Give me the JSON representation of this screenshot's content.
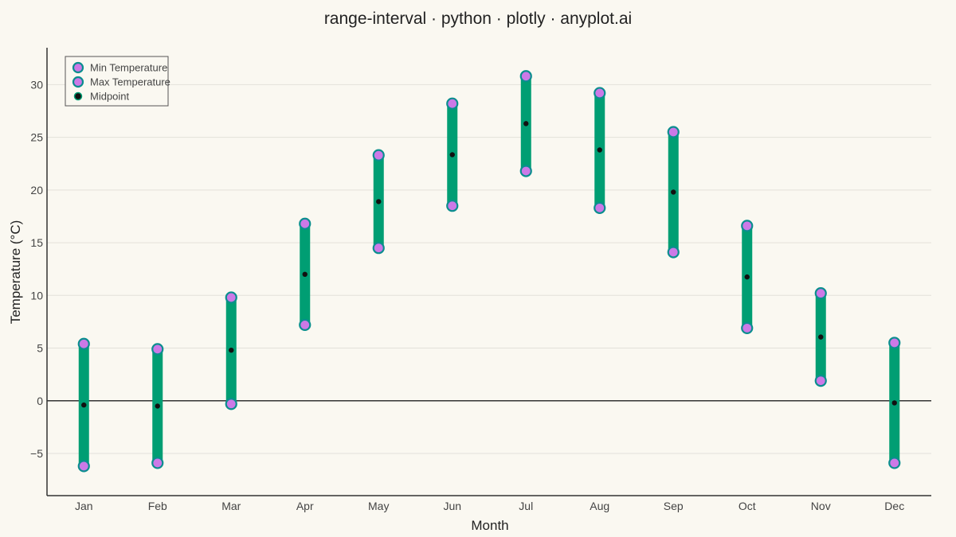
{
  "chart_data": {
    "type": "range-interval",
    "title": "range-interval · python · plotly · anyplot.ai",
    "xlabel": "Month",
    "ylabel": "Temperature (°C)",
    "categories": [
      "Jan",
      "Feb",
      "Mar",
      "Apr",
      "May",
      "Jun",
      "Jul",
      "Aug",
      "Sep",
      "Oct",
      "Nov",
      "Dec"
    ],
    "series": [
      {
        "name": "Min Temperature",
        "values": [
          -6.2,
          -5.9,
          -0.3,
          7.2,
          14.5,
          18.5,
          21.8,
          18.3,
          14.1,
          6.9,
          1.9,
          -5.9
        ]
      },
      {
        "name": "Max Temperature",
        "values": [
          5.4,
          4.9,
          9.8,
          16.8,
          23.3,
          28.2,
          30.8,
          29.2,
          25.5,
          16.6,
          10.2,
          5.5
        ]
      },
      {
        "name": "Midpoint",
        "values": [
          -0.4,
          -0.5,
          4.8,
          12.0,
          18.9,
          23.35,
          26.3,
          23.8,
          19.8,
          11.75,
          6.05,
          -0.2
        ]
      }
    ],
    "ylim": [
      -9,
      33.5
    ],
    "yticks": [
      -5,
      0,
      5,
      10,
      15,
      20,
      25,
      30
    ],
    "ytick_labels": [
      "−5",
      "0",
      "5",
      "10",
      "15",
      "20",
      "25",
      "30"
    ],
    "grid": true,
    "zero_line": true,
    "legend_position": "top-left",
    "colors": {
      "background": "#FAF8F1",
      "range_bar": "#009E73",
      "endpoint_fill": "#CC79E7",
      "endpoint_outline": "#0A8E8E",
      "midpoint": "#111111",
      "grid": "#E3E1DA",
      "axis": "#333333"
    }
  }
}
